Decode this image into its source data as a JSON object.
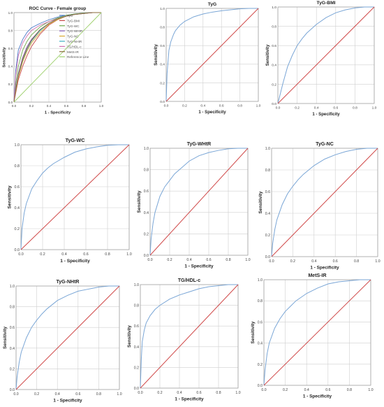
{
  "chart_data": [
    {
      "type": "line",
      "title": "ROC Curve - Female group",
      "xlabel": "1 - Specificity",
      "ylabel": "Sensitivity",
      "xlim": [
        0,
        1
      ],
      "ylim": [
        0,
        1
      ],
      "xticks": [
        "0.0",
        "0.2",
        "0.4",
        "0.6",
        "0.8",
        "1.0"
      ],
      "yticks": [
        "0.0",
        "0.2",
        "0.4",
        "0.6",
        "0.8",
        "1.0"
      ],
      "grid": true,
      "legend": "top-right",
      "series": [
        {
          "name": "TyG",
          "color": "#4a78c8",
          "x": [
            0,
            0.02,
            0.05,
            0.1,
            0.15,
            0.2,
            0.3,
            0.4,
            0.5,
            0.6,
            0.7,
            0.8,
            0.9,
            1
          ],
          "y": [
            0,
            0.35,
            0.58,
            0.7,
            0.78,
            0.83,
            0.88,
            0.92,
            0.95,
            0.97,
            0.985,
            0.995,
            1,
            1
          ]
        },
        {
          "name": "TyG-BMI",
          "color": "#c84a4a",
          "x": [
            0,
            0.02,
            0.05,
            0.1,
            0.15,
            0.2,
            0.3,
            0.4,
            0.5,
            0.6,
            0.7,
            0.8,
            0.9,
            1
          ],
          "y": [
            0,
            0.1,
            0.25,
            0.4,
            0.52,
            0.62,
            0.76,
            0.86,
            0.92,
            0.96,
            0.98,
            0.99,
            1,
            1
          ]
        },
        {
          "name": "TyG-WC",
          "color": "#6fa84a",
          "x": [
            0,
            0.02,
            0.05,
            0.1,
            0.15,
            0.2,
            0.3,
            0.4,
            0.5,
            0.6,
            0.7,
            0.8,
            0.9,
            1
          ],
          "y": [
            0,
            0.2,
            0.4,
            0.58,
            0.68,
            0.75,
            0.84,
            0.9,
            0.94,
            0.97,
            0.985,
            0.995,
            1,
            1
          ]
        },
        {
          "name": "TyG-WHtR",
          "color": "#8a5fb8",
          "x": [
            0,
            0.02,
            0.05,
            0.1,
            0.15,
            0.2,
            0.3,
            0.4,
            0.5,
            0.6,
            0.7,
            0.8,
            0.9,
            1
          ],
          "y": [
            0,
            0.15,
            0.32,
            0.5,
            0.62,
            0.7,
            0.81,
            0.88,
            0.93,
            0.96,
            0.98,
            0.99,
            1,
            1
          ]
        },
        {
          "name": "TyG-NC",
          "color": "#d8a830",
          "x": [
            0,
            0.02,
            0.05,
            0.1,
            0.15,
            0.2,
            0.3,
            0.4,
            0.5,
            0.6,
            0.7,
            0.8,
            0.9,
            1
          ],
          "y": [
            0,
            0.12,
            0.28,
            0.45,
            0.57,
            0.66,
            0.78,
            0.87,
            0.92,
            0.96,
            0.98,
            0.99,
            1,
            1
          ]
        },
        {
          "name": "TyG-NHtR",
          "color": "#3aaec0",
          "x": [
            0,
            0.02,
            0.05,
            0.1,
            0.15,
            0.2,
            0.3,
            0.4,
            0.5,
            0.6,
            0.7,
            0.8,
            0.9,
            1
          ],
          "y": [
            0,
            0.14,
            0.3,
            0.47,
            0.59,
            0.68,
            0.8,
            0.88,
            0.93,
            0.96,
            0.98,
            0.99,
            1,
            1
          ]
        },
        {
          "name": "TG/HDL-c",
          "color": "#d070b0",
          "x": [
            0,
            0.02,
            0.05,
            0.1,
            0.15,
            0.2,
            0.3,
            0.4,
            0.5,
            0.6,
            0.7,
            0.8,
            0.9,
            1
          ],
          "y": [
            0,
            0.3,
            0.52,
            0.66,
            0.74,
            0.8,
            0.86,
            0.9,
            0.93,
            0.96,
            0.98,
            0.99,
            1,
            1
          ]
        },
        {
          "name": "MetS-IR",
          "color": "#8a6a3a",
          "x": [
            0,
            0.02,
            0.05,
            0.1,
            0.15,
            0.2,
            0.3,
            0.4,
            0.5,
            0.6,
            0.7,
            0.8,
            0.9,
            1
          ],
          "y": [
            0,
            0.13,
            0.3,
            0.48,
            0.6,
            0.69,
            0.81,
            0.88,
            0.93,
            0.96,
            0.98,
            0.99,
            1,
            1
          ]
        },
        {
          "name": "Reference Line",
          "color": "#9ccf6a",
          "x": [
            0,
            1
          ],
          "y": [
            0,
            1
          ]
        }
      ]
    },
    {
      "type": "line",
      "title": "TyG",
      "xlabel": "1 - Specificity",
      "ylabel": "Sensitivity",
      "xlim": [
        0,
        1
      ],
      "ylim": [
        0,
        1
      ],
      "xticks": [
        "0.0",
        "0.2",
        "0.4",
        "0.6",
        "0.8",
        "1.0"
      ],
      "yticks": [
        "0.0",
        "0.2",
        "0.4",
        "0.6",
        "0.8",
        "1.0"
      ],
      "grid": true,
      "series": [
        {
          "color": "#7aa6d6",
          "x": [
            0,
            0.01,
            0.03,
            0.05,
            0.08,
            0.1,
            0.15,
            0.2,
            0.3,
            0.4,
            0.5,
            0.6,
            0.7,
            0.8,
            0.9,
            1
          ],
          "y": [
            0,
            0.3,
            0.55,
            0.64,
            0.72,
            0.76,
            0.82,
            0.86,
            0.91,
            0.94,
            0.96,
            0.975,
            0.985,
            0.995,
            1,
            1
          ]
        },
        {
          "color": "#d04a4a",
          "x": [
            0,
            1
          ],
          "y": [
            0,
            1
          ]
        }
      ]
    },
    {
      "type": "line",
      "title": "TyG-BMI",
      "xlabel": "1 - Specificity",
      "ylabel": "Sensitivity",
      "xlim": [
        0,
        1
      ],
      "ylim": [
        0,
        1
      ],
      "xticks": [
        "0.0",
        "0.2",
        "0.4",
        "0.6",
        "0.8",
        "1.0"
      ],
      "yticks": [
        "0.0",
        "0.2",
        "0.4",
        "0.6",
        "0.8",
        "1.0"
      ],
      "grid": true,
      "series": [
        {
          "color": "#7aa6d6",
          "x": [
            0,
            0.02,
            0.05,
            0.1,
            0.15,
            0.2,
            0.25,
            0.3,
            0.4,
            0.5,
            0.6,
            0.7,
            0.8,
            0.9,
            1
          ],
          "y": [
            0,
            0.08,
            0.2,
            0.38,
            0.5,
            0.6,
            0.67,
            0.73,
            0.82,
            0.89,
            0.94,
            0.97,
            0.99,
            1,
            1
          ]
        },
        {
          "color": "#d04a4a",
          "x": [
            0,
            1
          ],
          "y": [
            0,
            1
          ]
        }
      ]
    },
    {
      "type": "line",
      "title": "TyG-WC",
      "xlabel": "1 - Specificity",
      "ylabel": "Sensitivity",
      "xlim": [
        0,
        1
      ],
      "ylim": [
        0,
        1
      ],
      "xticks": [
        "0.0",
        "0.2",
        "0.4",
        "0.6",
        "0.8",
        "1.0"
      ],
      "yticks": [
        "0.0",
        "0.2",
        "0.4",
        "0.6",
        "0.8",
        "1.0"
      ],
      "grid": true,
      "series": [
        {
          "color": "#7aa6d6",
          "x": [
            0,
            0.01,
            0.03,
            0.05,
            0.1,
            0.15,
            0.2,
            0.25,
            0.3,
            0.4,
            0.5,
            0.6,
            0.7,
            0.8,
            0.9,
            1
          ],
          "y": [
            0,
            0.2,
            0.35,
            0.44,
            0.58,
            0.66,
            0.73,
            0.78,
            0.82,
            0.88,
            0.93,
            0.96,
            0.98,
            0.995,
            1,
            1
          ]
        },
        {
          "color": "#d04a4a",
          "x": [
            0,
            1
          ],
          "y": [
            0,
            1
          ]
        }
      ]
    },
    {
      "type": "line",
      "title": "TyG-WHtR",
      "xlabel": "1 - Specificity",
      "ylabel": "Sensitivity",
      "xlim": [
        0,
        1
      ],
      "ylim": [
        0,
        1
      ],
      "xticks": [
        "0.0",
        "0.2",
        "0.4",
        "0.6",
        "0.8",
        "1.0"
      ],
      "yticks": [
        "0.0",
        "0.2",
        "0.4",
        "0.6",
        "0.8",
        "1.0"
      ],
      "grid": true,
      "series": [
        {
          "color": "#7aa6d6",
          "x": [
            0,
            0.01,
            0.03,
            0.05,
            0.1,
            0.15,
            0.2,
            0.25,
            0.3,
            0.4,
            0.5,
            0.6,
            0.7,
            0.8,
            0.9,
            1
          ],
          "y": [
            0,
            0.15,
            0.3,
            0.4,
            0.55,
            0.64,
            0.7,
            0.76,
            0.8,
            0.88,
            0.93,
            0.96,
            0.98,
            0.995,
            1,
            1
          ]
        },
        {
          "color": "#d04a4a",
          "x": [
            0,
            1
          ],
          "y": [
            0,
            1
          ]
        }
      ]
    },
    {
      "type": "line",
      "title": "TyG-NC",
      "xlabel": "1 - Specificity",
      "ylabel": "Sensitivity",
      "xlim": [
        0,
        1
      ],
      "ylim": [
        0,
        1
      ],
      "xticks": [
        "0.0",
        "0.2",
        "0.4",
        "0.6",
        "0.8",
        "1.0"
      ],
      "yticks": [
        "0.0",
        "0.2",
        "0.4",
        "0.6",
        "0.8",
        "1.0"
      ],
      "grid": true,
      "series": [
        {
          "color": "#7aa6d6",
          "x": [
            0,
            0.01,
            0.03,
            0.05,
            0.1,
            0.15,
            0.2,
            0.25,
            0.3,
            0.4,
            0.5,
            0.6,
            0.7,
            0.8,
            0.9,
            1
          ],
          "y": [
            0,
            0.12,
            0.25,
            0.34,
            0.48,
            0.58,
            0.65,
            0.71,
            0.76,
            0.84,
            0.9,
            0.94,
            0.97,
            0.99,
            1,
            1
          ]
        },
        {
          "color": "#d04a4a",
          "x": [
            0,
            1
          ],
          "y": [
            0,
            1
          ]
        }
      ]
    },
    {
      "type": "line",
      "title": "TyG-NHtR",
      "xlabel": "1 - Specificity",
      "ylabel": "Sensitivity",
      "xlim": [
        0,
        1
      ],
      "ylim": [
        0,
        1
      ],
      "xticks": [
        "0.0",
        "0.2",
        "0.4",
        "0.6",
        "0.8",
        "1.0"
      ],
      "yticks": [
        "0.0",
        "0.2",
        "0.4",
        "0.6",
        "0.8",
        "1.0"
      ],
      "grid": true,
      "series": [
        {
          "color": "#7aa6d6",
          "x": [
            0,
            0.01,
            0.03,
            0.05,
            0.1,
            0.15,
            0.2,
            0.25,
            0.3,
            0.4,
            0.5,
            0.6,
            0.7,
            0.8,
            0.9,
            1
          ],
          "y": [
            0,
            0.12,
            0.26,
            0.36,
            0.5,
            0.6,
            0.67,
            0.73,
            0.78,
            0.86,
            0.91,
            0.95,
            0.97,
            0.99,
            1,
            1
          ]
        },
        {
          "color": "#d04a4a",
          "x": [
            0,
            1
          ],
          "y": [
            0,
            1
          ]
        }
      ]
    },
    {
      "type": "line",
      "title": "TG/HDL-c",
      "xlabel": "1 - Specificity",
      "ylabel": "Sensitivity",
      "xlim": [
        0,
        1
      ],
      "ylim": [
        0,
        1
      ],
      "xticks": [
        "0.0",
        "0.2",
        "0.4",
        "0.6",
        "0.8",
        "1.0"
      ],
      "yticks": [
        "0.0",
        "0.2",
        "0.4",
        "0.6",
        "0.8",
        "1.0"
      ],
      "grid": true,
      "series": [
        {
          "color": "#7aa6d6",
          "x": [
            0,
            0.01,
            0.02,
            0.04,
            0.06,
            0.1,
            0.15,
            0.2,
            0.3,
            0.4,
            0.5,
            0.6,
            0.7,
            0.8,
            0.9,
            1
          ],
          "y": [
            0,
            0.28,
            0.45,
            0.56,
            0.63,
            0.7,
            0.76,
            0.8,
            0.86,
            0.9,
            0.93,
            0.96,
            0.98,
            0.99,
            1,
            1
          ]
        },
        {
          "color": "#d04a4a",
          "x": [
            0,
            1
          ],
          "y": [
            0,
            1
          ]
        }
      ]
    },
    {
      "type": "line",
      "title": "MetS-IR",
      "xlabel": "1 - Specificity",
      "ylabel": "Sensitivity",
      "xlim": [
        0,
        1
      ],
      "ylim": [
        0,
        1
      ],
      "xticks": [
        "0.0",
        "0.2",
        "0.4",
        "0.6",
        "0.8",
        "1.0"
      ],
      "yticks": [
        "0.0",
        "0.2",
        "0.4",
        "0.6",
        "0.8",
        "1.0"
      ],
      "grid": true,
      "series": [
        {
          "color": "#7aa6d6",
          "x": [
            0,
            0.01,
            0.03,
            0.05,
            0.1,
            0.15,
            0.2,
            0.25,
            0.3,
            0.4,
            0.5,
            0.6,
            0.7,
            0.8,
            0.9,
            1
          ],
          "y": [
            0,
            0.14,
            0.3,
            0.4,
            0.54,
            0.63,
            0.7,
            0.75,
            0.8,
            0.87,
            0.92,
            0.96,
            0.98,
            0.99,
            1,
            1
          ]
        },
        {
          "color": "#d04a4a",
          "x": [
            0,
            1
          ],
          "y": [
            0,
            1
          ]
        }
      ]
    }
  ]
}
